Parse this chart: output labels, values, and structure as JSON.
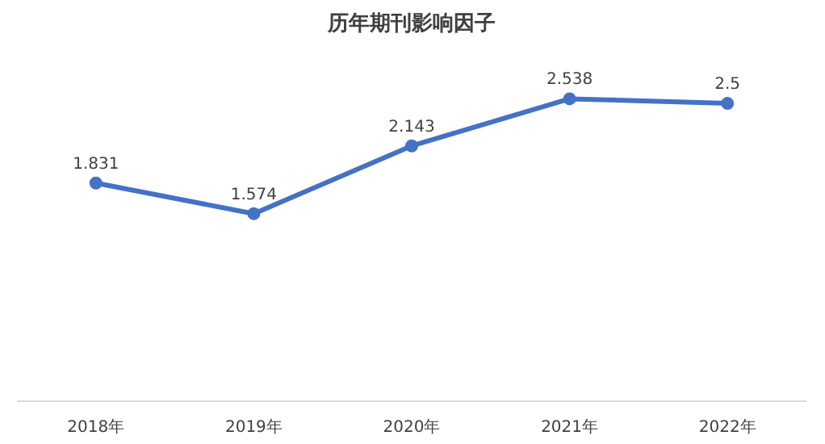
{
  "chart_data": {
    "type": "line",
    "title": "历年期刊影响因子",
    "categories": [
      "2018年",
      "2019年",
      "2020年",
      "2021年",
      "2022年"
    ],
    "series": [
      {
        "color": "#4472c4",
        "values": [
          1.831,
          1.574,
          2.143,
          2.538,
          2.5
        ]
      }
    ],
    "tick_labels": "x",
    "data_labels": true,
    "marker": "circle",
    "grid": false
  }
}
